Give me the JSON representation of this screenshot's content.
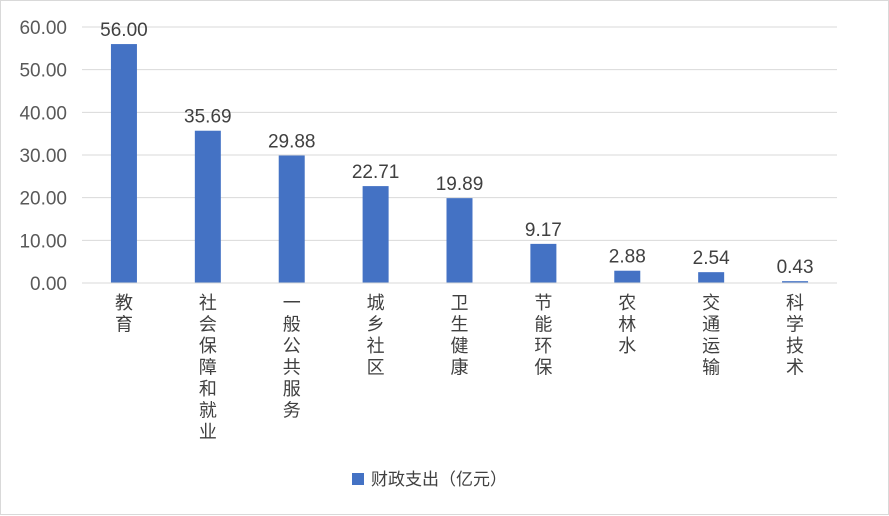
{
  "chart_data": {
    "type": "bar",
    "categories": [
      "教育",
      "社会保障和就业",
      "一般公共服务",
      "城乡社区",
      "卫生健康",
      "节能环保",
      "农林水",
      "交通运输",
      "科学技术"
    ],
    "series": [
      {
        "name": "财政支出（亿元）",
        "values": [
          56.0,
          35.69,
          29.88,
          22.71,
          19.89,
          9.17,
          2.88,
          2.54,
          0.43
        ],
        "value_labels": [
          "56.00",
          "35.69",
          "29.88",
          "22.71",
          "19.89",
          "9.17",
          "2.88",
          "2.54",
          "0.43"
        ],
        "color": "#4472C4"
      }
    ],
    "ylim": [
      0,
      60
    ],
    "yticks": [
      "0.00",
      "10.00",
      "20.00",
      "30.00",
      "40.00",
      "50.00",
      "60.00"
    ],
    "ytick_values": [
      0,
      10,
      20,
      30,
      40,
      50,
      60
    ],
    "grid": true,
    "legend_position": "bottom",
    "gridline_color": "#d9d9d9",
    "axis_color": "#d9d9d9"
  }
}
